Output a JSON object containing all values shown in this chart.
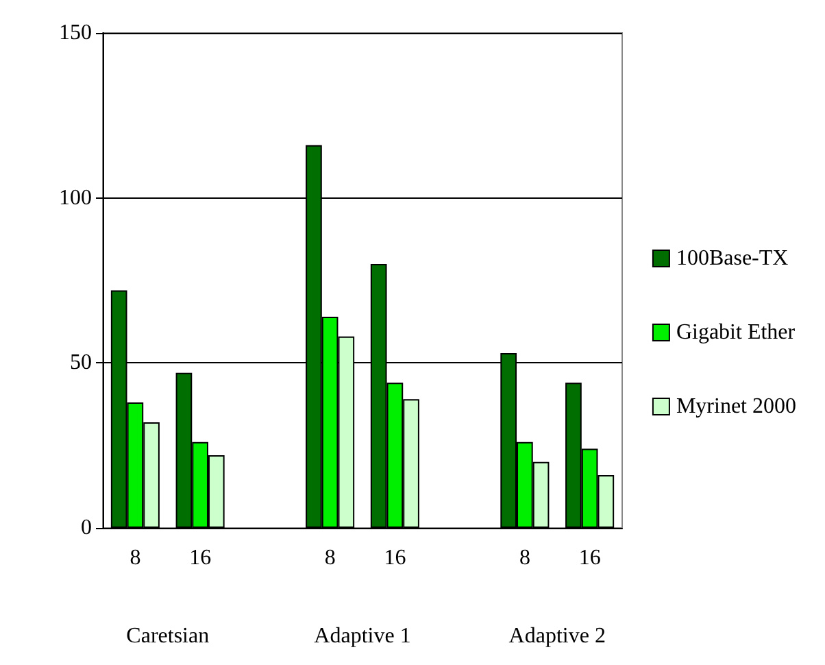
{
  "chart_data": {
    "type": "bar",
    "categories": [
      "8",
      "16",
      null,
      "8",
      "16",
      null,
      "8",
      "16"
    ],
    "series": [
      {
        "name": "100Base-TX",
        "color": "#006e00",
        "values": [
          72,
          47,
          null,
          116,
          80,
          null,
          53,
          44
        ]
      },
      {
        "name": "Gigabit Ether",
        "color": "#00ee00",
        "values": [
          38,
          26,
          null,
          64,
          44,
          null,
          26,
          24
        ]
      },
      {
        "name": "Myrinet 2000",
        "color": "#ccffcc",
        "values": [
          32,
          22,
          null,
          58,
          39,
          null,
          20,
          16
        ]
      }
    ],
    "annotations": [
      "Caretsian",
      "Adaptive 1",
      "Adaptive 2"
    ],
    "ylim": [
      0,
      150
    ],
    "yticks": [
      0,
      50,
      100,
      150
    ],
    "grid": "y",
    "legend": "right"
  }
}
